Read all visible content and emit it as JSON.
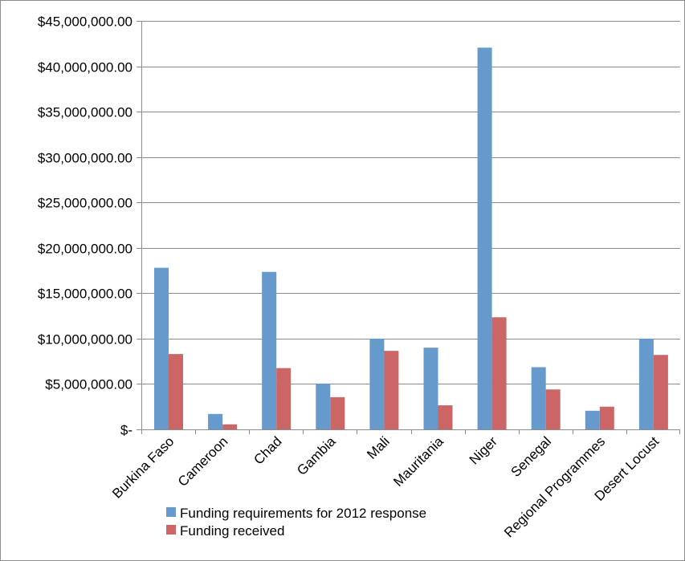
{
  "chart_data": {
    "type": "bar",
    "categories": [
      "Burkina Faso",
      "Cameroon",
      "Chad",
      "Gambia",
      "Mali",
      "Mauritania",
      "Niger",
      "Senegal",
      "Regional Programmes",
      "Desert Locust"
    ],
    "series": [
      {
        "name": "Funding requirements for 2012 response",
        "color": "#6699cc",
        "values": [
          17800000,
          1700000,
          17350000,
          5050000,
          10000000,
          9000000,
          42050000,
          6850000,
          2050000,
          10000000
        ]
      },
      {
        "name": "Funding received",
        "color": "#cc6666",
        "values": [
          8300000,
          550000,
          6750000,
          3550000,
          8650000,
          2650000,
          12350000,
          4400000,
          2500000,
          8200000
        ]
      }
    ],
    "y_ticks": [
      0,
      5000000,
      10000000,
      15000000,
      20000000,
      25000000,
      30000000,
      35000000,
      40000000,
      45000000
    ],
    "y_tick_labels": [
      "$-",
      "$5,000,000.00",
      "$10,000,000.00",
      "$15,000,000.00",
      "$20,000,000.00",
      "$25,000,000.00",
      "$30,000,000.00",
      "$35,000,000.00",
      "$40,000,000.00",
      "$45,000,000.00"
    ],
    "ylim": [
      0,
      45000000
    ],
    "grid": true,
    "legend_position": "bottom-center",
    "title": "",
    "xlabel": "",
    "ylabel": ""
  }
}
